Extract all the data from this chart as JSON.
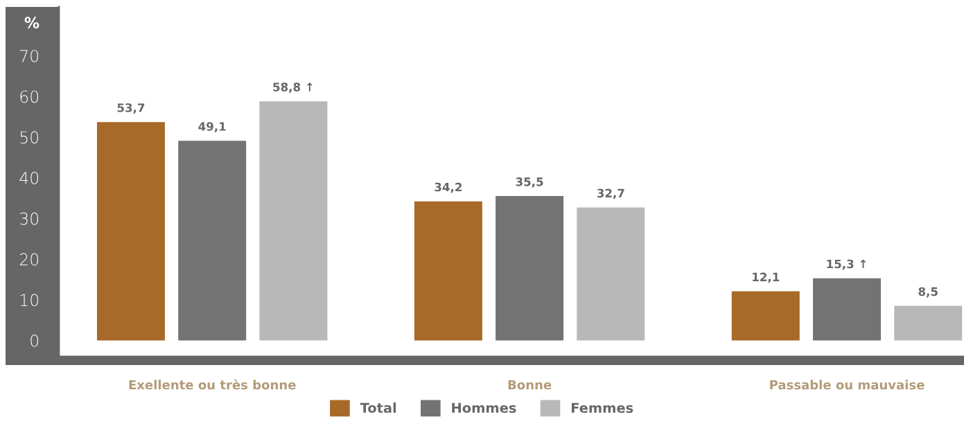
{
  "chart_data": {
    "type": "bar",
    "ylabel": "%",
    "categories": [
      "Exellente ou très bonne",
      "Bonne",
      "Passable ou mauvaise"
    ],
    "series": [
      {
        "name": "Total",
        "color": "#a86a28",
        "values": [
          53.7,
          34.2,
          12.1
        ],
        "value_labels": [
          "53,7",
          "34,2",
          "12,1"
        ]
      },
      {
        "name": "Hommes",
        "color": "#737373",
        "values": [
          49.1,
          35.5,
          15.3
        ],
        "value_labels": [
          "49,1",
          "35,5",
          "15,3 ↑"
        ]
      },
      {
        "name": "Femmes",
        "color": "#b8b8b8",
        "values": [
          58.8,
          32.7,
          8.5
        ],
        "value_labels": [
          "58,8 ↑",
          "32,7",
          "8,5"
        ]
      }
    ],
    "ylim": [
      -4,
      82
    ],
    "yticks": [
      0,
      10,
      20,
      30,
      40,
      50,
      60,
      70
    ],
    "grid": false,
    "legend": "bottom"
  }
}
